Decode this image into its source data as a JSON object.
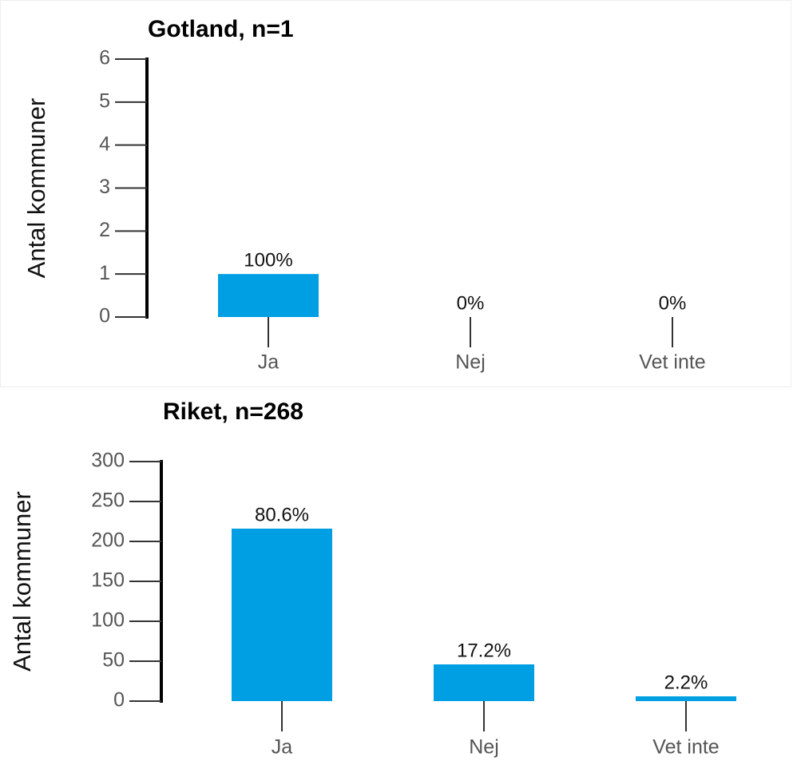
{
  "chart_data": [
    {
      "type": "bar",
      "title": "Gotland, n=1",
      "y_label": "Antal kommuner",
      "categories": [
        "Ja",
        "Nej",
        "Vet inte"
      ],
      "values": [
        1,
        0,
        0
      ],
      "value_labels": [
        "100%",
        "0%",
        "0%"
      ],
      "color": "#009fe3",
      "ylim": [
        0,
        6
      ],
      "yticks": [
        0,
        1,
        2,
        3,
        4,
        5,
        6
      ]
    },
    {
      "type": "bar",
      "title": "Riket, n=268",
      "y_label": "Antal kommuner",
      "categories": [
        "Ja",
        "Nej",
        "Vet inte"
      ],
      "values": [
        216,
        46,
        6
      ],
      "value_labels": [
        "80.6%",
        "17.2%",
        "2.2%"
      ],
      "color": "#009fe3",
      "ylim": [
        0,
        300
      ],
      "yticks": [
        0,
        50,
        100,
        150,
        200,
        250,
        300
      ]
    }
  ]
}
